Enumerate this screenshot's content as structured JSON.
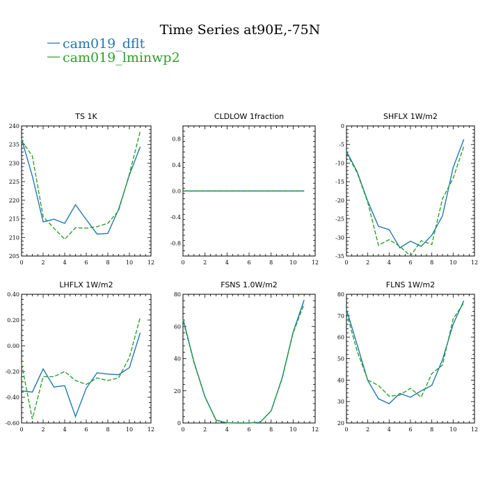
{
  "title": "Time Series at90E,-75N",
  "legend": [
    {
      "name": "cam019_dflt",
      "color": "#1f77b4"
    },
    {
      "name": "cam019_lminwp2",
      "color": "#2ca02c"
    }
  ],
  "chart_data": [
    {
      "type": "line",
      "title": "TS   1K",
      "x": [
        0,
        1,
        2,
        3,
        4,
        5,
        6,
        7,
        8,
        9,
        10,
        11
      ],
      "xlim": [
        0,
        12
      ],
      "ylim": [
        205,
        240
      ],
      "xticks": [
        0,
        2,
        4,
        6,
        8,
        10,
        12
      ],
      "yticks": [
        205,
        210,
        215,
        220,
        225,
        230,
        235,
        240
      ],
      "ytick_labels": [
        "205",
        "210",
        "215",
        "220",
        "225",
        "230",
        "235",
        "240"
      ],
      "series": [
        {
          "name": "cam019_dflt",
          "values": [
            236.5,
            226.5,
            214.2,
            214.9,
            213.8,
            218.8,
            214.8,
            210.9,
            211.1,
            217.6,
            226.8,
            234.4
          ]
        },
        {
          "name": "cam019_lminwp2",
          "values": [
            236.0,
            231.9,
            215.6,
            212.5,
            209.5,
            212.6,
            212.5,
            212.9,
            213.8,
            217.2,
            227.1,
            238.5
          ]
        }
      ]
    },
    {
      "type": "line",
      "title": "CLDLOW   1fraction",
      "x": [
        0,
        1,
        2,
        3,
        4,
        5,
        6,
        7,
        8,
        9,
        10,
        11
      ],
      "xlim": [
        0,
        12
      ],
      "ylim": [
        -1.0,
        1.0
      ],
      "xticks": [
        0,
        2,
        4,
        6,
        8,
        10,
        12
      ],
      "yticks": [
        -0.8,
        -0.4,
        0.0,
        0.4,
        0.8
      ],
      "ytick_labels": [
        "-0.8",
        "-0.4",
        "0.0",
        "0.4",
        "0.8"
      ],
      "series": [
        {
          "name": "cam019_dflt",
          "values": [
            0,
            0,
            0,
            0,
            0,
            0,
            0,
            0,
            0,
            0,
            0,
            0
          ]
        },
        {
          "name": "cam019_lminwp2",
          "values": [
            0,
            0,
            0,
            0,
            0,
            0,
            0,
            0,
            0,
            0,
            0,
            0
          ]
        }
      ]
    },
    {
      "type": "line",
      "title": "SHFLX   1W/m2",
      "x": [
        0,
        1,
        2,
        3,
        4,
        5,
        6,
        7,
        8,
        9,
        10,
        11
      ],
      "xlim": [
        0,
        12
      ],
      "ylim": [
        -35,
        0
      ],
      "xticks": [
        0,
        2,
        4,
        6,
        8,
        10,
        12
      ],
      "yticks": [
        -35,
        -30,
        -25,
        -20,
        -15,
        -10,
        -5,
        0
      ],
      "ytick_labels": [
        "-35",
        "-30",
        "-25",
        "-20",
        "-15",
        "-10",
        "-5",
        "0"
      ],
      "series": [
        {
          "name": "cam019_dflt",
          "values": [
            -6.8,
            -12.3,
            -20.3,
            -27.0,
            -27.9,
            -32.8,
            -31.0,
            -32.4,
            -29.4,
            -24.2,
            -11.2,
            -3.6
          ]
        },
        {
          "name": "cam019_lminwp2",
          "values": [
            -7.3,
            -12.6,
            -20.6,
            -32.1,
            -30.6,
            -32.4,
            -35.0,
            -30.9,
            -31.9,
            -19.6,
            -14.1,
            -5.5
          ]
        }
      ]
    },
    {
      "type": "line",
      "title": "LHFLX   1W/m2",
      "x": [
        0,
        1,
        2,
        3,
        4,
        5,
        6,
        7,
        8,
        9,
        10,
        11
      ],
      "xlim": [
        0,
        12
      ],
      "ylim": [
        -0.6,
        0.4
      ],
      "xticks": [
        0,
        2,
        4,
        6,
        8,
        10,
        12
      ],
      "yticks": [
        -0.6,
        -0.4,
        -0.2,
        0.0,
        0.2,
        0.4
      ],
      "ytick_labels": [
        "-0.60",
        "-0.40",
        "-0.20",
        "0.00",
        "0.20",
        "0.40"
      ],
      "series": [
        {
          "name": "cam019_dflt",
          "values": [
            -0.35,
            -0.36,
            -0.18,
            -0.32,
            -0.31,
            -0.55,
            -0.33,
            -0.21,
            -0.22,
            -0.225,
            -0.17,
            0.1
          ]
        },
        {
          "name": "cam019_lminwp2",
          "values": [
            -0.14,
            -0.57,
            -0.24,
            -0.24,
            -0.2,
            -0.27,
            -0.3,
            -0.25,
            -0.27,
            -0.25,
            -0.09,
            0.22
          ]
        }
      ]
    },
    {
      "type": "line",
      "title": "FSNS   1.0W/m2",
      "x": [
        0,
        1,
        2,
        3,
        4,
        5,
        6,
        7,
        8,
        9,
        10,
        11
      ],
      "xlim": [
        0,
        12
      ],
      "ylim": [
        0,
        80
      ],
      "xticks": [
        0,
        2,
        4,
        6,
        8,
        10,
        12
      ],
      "yticks": [
        0,
        20,
        40,
        60,
        80
      ],
      "ytick_labels": [
        "0",
        "20",
        "40",
        "60",
        "80"
      ],
      "series": [
        {
          "name": "cam019_dflt",
          "values": [
            65.0,
            38.0,
            16.3,
            1.8,
            0.1,
            0.0,
            0.0,
            0.4,
            7.5,
            28.0,
            56.5,
            76.5
          ]
        },
        {
          "name": "cam019_lminwp2",
          "values": [
            64.0,
            37.5,
            16.0,
            1.7,
            0.1,
            0.0,
            0.0,
            0.4,
            7.4,
            27.5,
            56.0,
            74.0
          ]
        }
      ]
    },
    {
      "type": "line",
      "title": "FLNS   1W/m2",
      "x": [
        0,
        1,
        2,
        3,
        4,
        5,
        6,
        7,
        8,
        9,
        10,
        11
      ],
      "xlim": [
        0,
        12
      ],
      "ylim": [
        20,
        80
      ],
      "xticks": [
        0,
        2,
        4,
        6,
        8,
        10,
        12
      ],
      "yticks": [
        20,
        30,
        40,
        50,
        60,
        70,
        80
      ],
      "ytick_labels": [
        "20",
        "30",
        "40",
        "50",
        "60",
        "70",
        "80"
      ],
      "series": [
        {
          "name": "cam019_dflt",
          "values": [
            73.0,
            56.5,
            39.8,
            31.3,
            29.0,
            33.8,
            32.0,
            35.0,
            37.5,
            49.5,
            66.0,
            77.0
          ]
        },
        {
          "name": "cam019_lminwp2",
          "values": [
            71.5,
            53.5,
            40.0,
            37.5,
            32.5,
            33.0,
            36.2,
            32.0,
            43.0,
            47.0,
            68.5,
            76.0
          ]
        }
      ]
    }
  ]
}
